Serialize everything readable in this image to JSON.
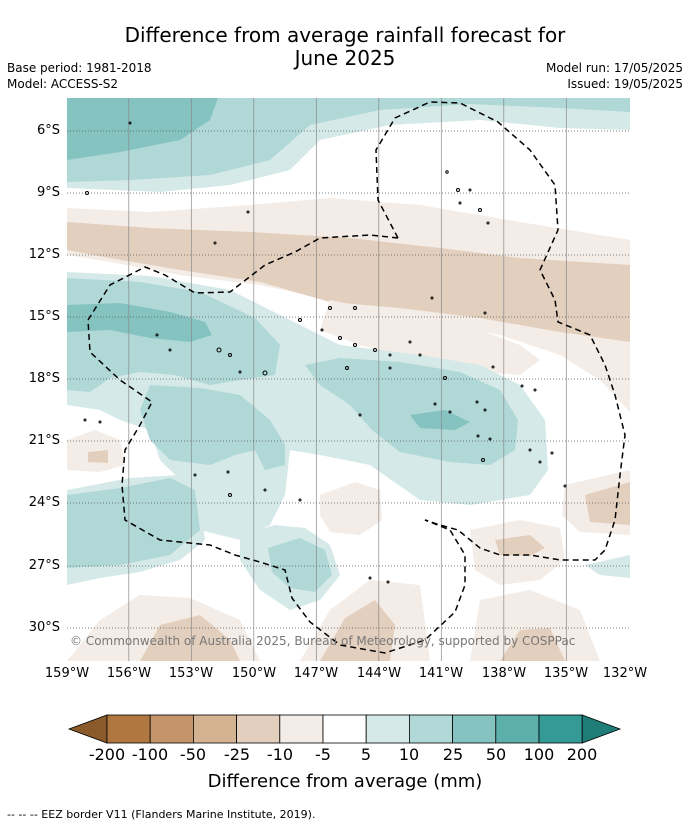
{
  "title_line1": "Difference from average rainfall forecast for",
  "title_line2": "June 2025",
  "base_period": "Base period: 1981-2018",
  "model": "Model: ACCESS-S2",
  "model_run": "Model run: 17/05/2025",
  "issued": "Issued: 19/05/2025",
  "copyright": "© Commonwealth of Australia 2025, Bureau of Meteorology, supported by COSPPac",
  "lat_labels": [
    "6°S",
    "9°S",
    "12°S",
    "15°S",
    "18°S",
    "21°S",
    "24°S",
    "27°S",
    "30°S"
  ],
  "lon_labels": [
    "159°W",
    "156°W",
    "153°W",
    "150°W",
    "147°W",
    "144°W",
    "141°W",
    "138°W",
    "135°W",
    "132°W"
  ],
  "colorbar": {
    "title": "Difference from average (mm)",
    "tick_labels": [
      "-200",
      "-100",
      "-50",
      "-25",
      "-10",
      "-5",
      "5",
      "10",
      "25",
      "50",
      "100",
      "200"
    ],
    "colors": [
      "#8b5a2b",
      "#b07840",
      "#c4956a",
      "#d4b393",
      "#e3cfbd",
      "#f4ece6",
      "#ffffff",
      "#d4e9e8",
      "#afd8d6",
      "#85c3c1",
      "#5dafab",
      "#339a96",
      "#1f7d78"
    ]
  },
  "legend_note": "--  --  -- EEZ border V11 (Flanders Marine Institute, 2019)."
}
